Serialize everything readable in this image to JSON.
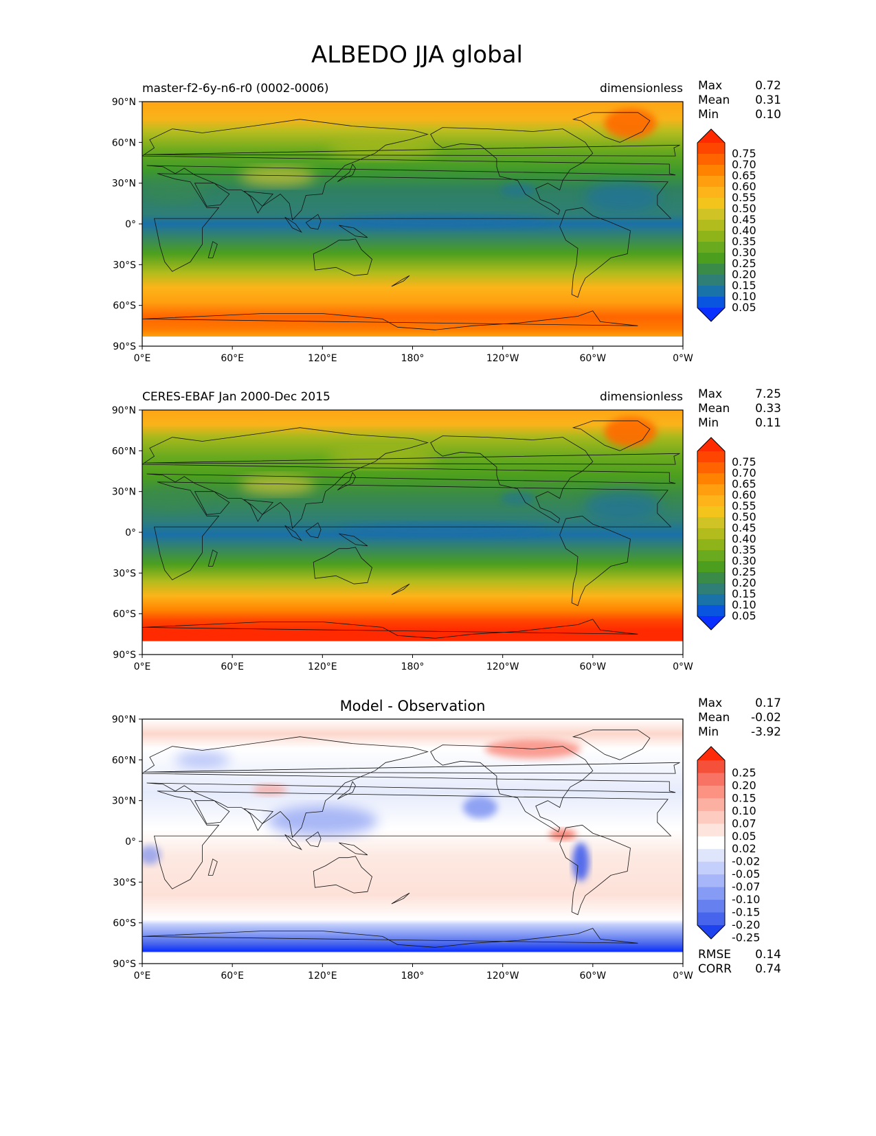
{
  "figure": {
    "title": "ALBEDO JJA global"
  },
  "chart_data": [
    {
      "type": "heatmap",
      "title": "",
      "subtitle_left": "master-f2-6y-n6-r0 (0002-0006)",
      "units": "dimensionless",
      "xlabel": "",
      "ylabel": "",
      "xlim": [
        0,
        360
      ],
      "ylim": [
        -90,
        90
      ],
      "x_ticks": [
        "0°E",
        "60°E",
        "120°E",
        "180°",
        "120°W",
        "60°W",
        "0°W"
      ],
      "y_ticks": [
        "90°N",
        "60°N",
        "30°N",
        "0°",
        "30°S",
        "60°S",
        "90°S"
      ],
      "stats": [
        {
          "label": "Max",
          "value": "0.72"
        },
        {
          "label": "Mean",
          "value": "0.31"
        },
        {
          "label": "Min",
          "value": "0.10"
        }
      ],
      "colorbar": {
        "labels": [
          "0.75",
          "0.70",
          "0.65",
          "0.60",
          "0.55",
          "0.50",
          "0.45",
          "0.40",
          "0.35",
          "0.30",
          "0.25",
          "0.20",
          "0.15",
          "0.10",
          "0.05"
        ],
        "colors": [
          "#ff2a00",
          "#ff4600",
          "#ff6400",
          "#ff8200",
          "#ff9f10",
          "#fcb41a",
          "#f3c41c",
          "#cfc326",
          "#b2bc1c",
          "#8fb41a",
          "#6aaa1e",
          "#4c9f1e",
          "#3a8a48",
          "#2f7f77",
          "#1a73a8",
          "#0a55e0",
          "#0a30ff"
        ]
      },
      "field": "model"
    },
    {
      "type": "heatmap",
      "title": "",
      "subtitle_left": "CERES-EBAF Jan 2000-Dec 2015",
      "units": "dimensionless",
      "xlabel": "",
      "ylabel": "",
      "xlim": [
        0,
        360
      ],
      "ylim": [
        -90,
        90
      ],
      "x_ticks": [
        "0°E",
        "60°E",
        "120°E",
        "180°",
        "120°W",
        "60°W",
        "0°W"
      ],
      "y_ticks": [
        "90°N",
        "60°N",
        "30°N",
        "0°",
        "30°S",
        "60°S",
        "90°S"
      ],
      "stats": [
        {
          "label": "Max",
          "value": "7.25"
        },
        {
          "label": "Mean",
          "value": "0.33"
        },
        {
          "label": "Min",
          "value": "0.11"
        }
      ],
      "colorbar": {
        "labels": [
          "0.75",
          "0.70",
          "0.65",
          "0.60",
          "0.55",
          "0.50",
          "0.45",
          "0.40",
          "0.35",
          "0.30",
          "0.25",
          "0.20",
          "0.15",
          "0.10",
          "0.05"
        ],
        "colors": [
          "#ff2a00",
          "#ff4600",
          "#ff6400",
          "#ff8200",
          "#ff9f10",
          "#fcb41a",
          "#f3c41c",
          "#cfc326",
          "#b2bc1c",
          "#8fb41a",
          "#6aaa1e",
          "#4c9f1e",
          "#3a8a48",
          "#2f7f77",
          "#1a73a8",
          "#0a55e0",
          "#0a30ff"
        ]
      },
      "field": "obs"
    },
    {
      "type": "heatmap",
      "title": "Model - Observation",
      "subtitle_left": "",
      "units": "",
      "xlabel": "",
      "ylabel": "",
      "xlim": [
        0,
        360
      ],
      "ylim": [
        -90,
        90
      ],
      "x_ticks": [
        "0°E",
        "60°E",
        "120°E",
        "180°",
        "120°W",
        "60°W",
        "0°W"
      ],
      "y_ticks": [
        "90°N",
        "60°N",
        "30°N",
        "0°",
        "30°S",
        "60°S",
        "90°S"
      ],
      "stats": [
        {
          "label": "Max",
          "value": "0.17"
        },
        {
          "label": "Mean",
          "value": "-0.02"
        },
        {
          "label": "Min",
          "value": "-3.92"
        }
      ],
      "footer_stats": [
        {
          "label": "RMSE",
          "value": "0.14"
        },
        {
          "label": "CORR",
          "value": "0.74"
        }
      ],
      "colorbar": {
        "labels": [
          "0.25",
          "0.20",
          "0.15",
          "0.10",
          "0.07",
          "0.05",
          "0.02",
          "-0.02",
          "-0.05",
          "-0.07",
          "-0.10",
          "-0.15",
          "-0.20",
          "-0.25"
        ],
        "colors": [
          "#ff2a0a",
          "#f4503a",
          "#f87363",
          "#fb9282",
          "#fcb0a2",
          "#fdcbc0",
          "#fde4dc",
          "#ffffff",
          "#dfe5fb",
          "#c4cffb",
          "#a6b6f8",
          "#859bf4",
          "#6680ef",
          "#4664ec",
          "#1e42ee"
        ]
      },
      "field": "diff"
    }
  ]
}
